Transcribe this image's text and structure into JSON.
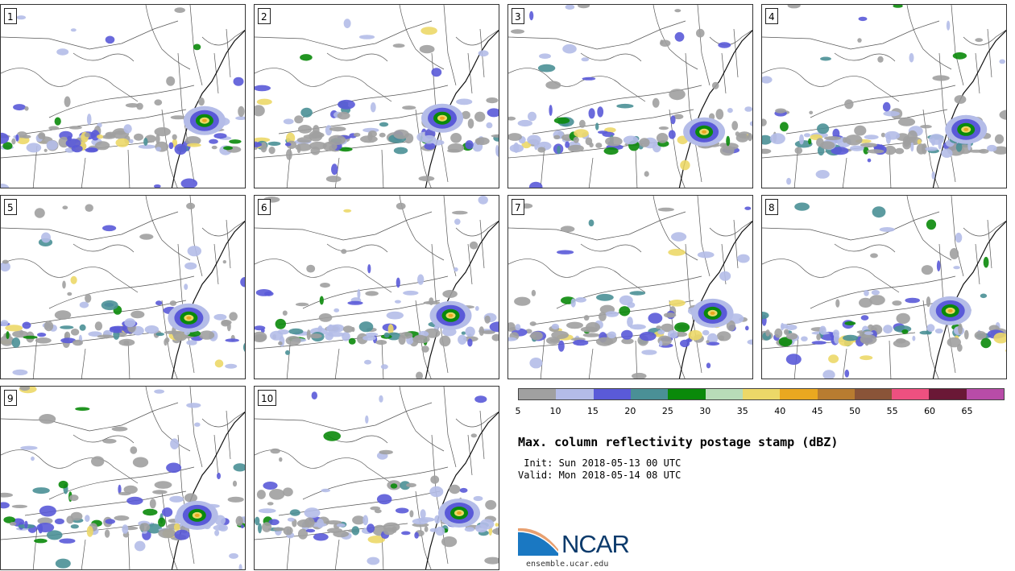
{
  "panels": [
    {
      "label": "1"
    },
    {
      "label": "2"
    },
    {
      "label": "3"
    },
    {
      "label": "4"
    },
    {
      "label": "5"
    },
    {
      "label": "6"
    },
    {
      "label": "7"
    },
    {
      "label": "8"
    },
    {
      "label": "9"
    },
    {
      "label": "10"
    }
  ],
  "colorbar": {
    "colors": [
      "#a0a0a0",
      "#b4bce8",
      "#5a5ad8",
      "#4a9096",
      "#0a8a0a",
      "#b8dcb8",
      "#ecd868",
      "#eaa820",
      "#b87c30",
      "#8a5438",
      "#ee5080",
      "#6a1836",
      "#b84ca8"
    ],
    "ticks": [
      "5",
      "10",
      "15",
      "20",
      "25",
      "30",
      "35",
      "40",
      "45",
      "50",
      "55",
      "60",
      "65"
    ]
  },
  "title": "Max. column reflectivity postage stamp (dBZ)",
  "init_text": " Init: Sun 2018-05-13 00 UTC",
  "valid_text": "Valid: Mon 2018-05-14 08 UTC",
  "logo": {
    "text": "NCAR",
    "icon": "ncar-swoosh-logo"
  },
  "site": "ensemble.ucar.edu"
}
